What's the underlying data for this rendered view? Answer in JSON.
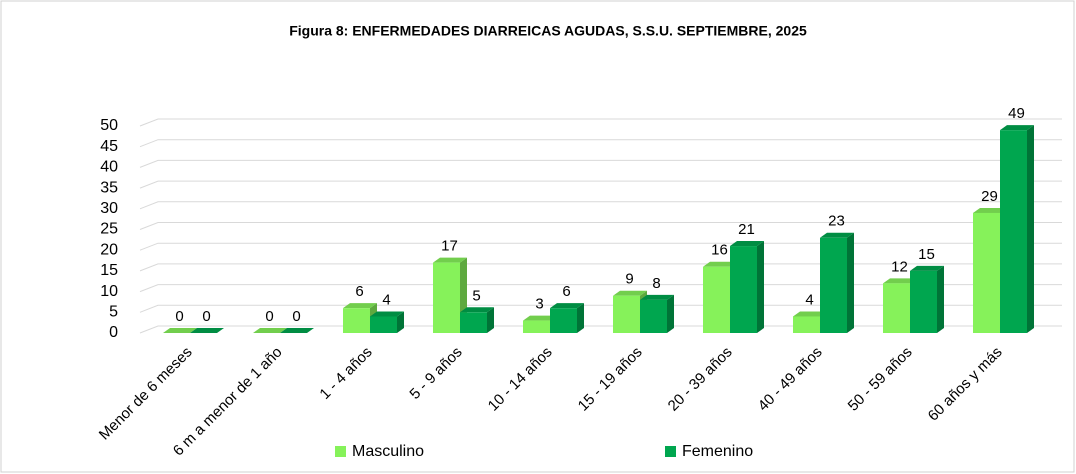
{
  "chart_data": {
    "type": "bar",
    "title": "Figura 8: ENFERMEDADES DIARREICAS AGUDAS, S.S.U. SEPTIEMBRE, 2025",
    "categories": [
      "Menor de 6 meses",
      "6 m a menor de 1 año",
      "1 - 4 años",
      "5 - 9 años",
      "10 - 14 años",
      "15 - 19 años",
      "20 - 39 años",
      "40 - 49 años",
      "50 - 59 años",
      "60 años y más"
    ],
    "series": [
      {
        "name": "Masculino",
        "color": "#86f25a",
        "values": [
          0,
          0,
          6,
          17,
          3,
          9,
          16,
          4,
          12,
          29
        ]
      },
      {
        "name": "Femenino",
        "color": "#00a64f",
        "values": [
          0,
          0,
          4,
          5,
          6,
          8,
          21,
          23,
          15,
          49
        ]
      }
    ],
    "ylim": [
      0,
      50
    ],
    "yticks": [
      0,
      5,
      10,
      15,
      20,
      25,
      30,
      35,
      40,
      45,
      50
    ],
    "grid": true,
    "legend": "bottom"
  }
}
